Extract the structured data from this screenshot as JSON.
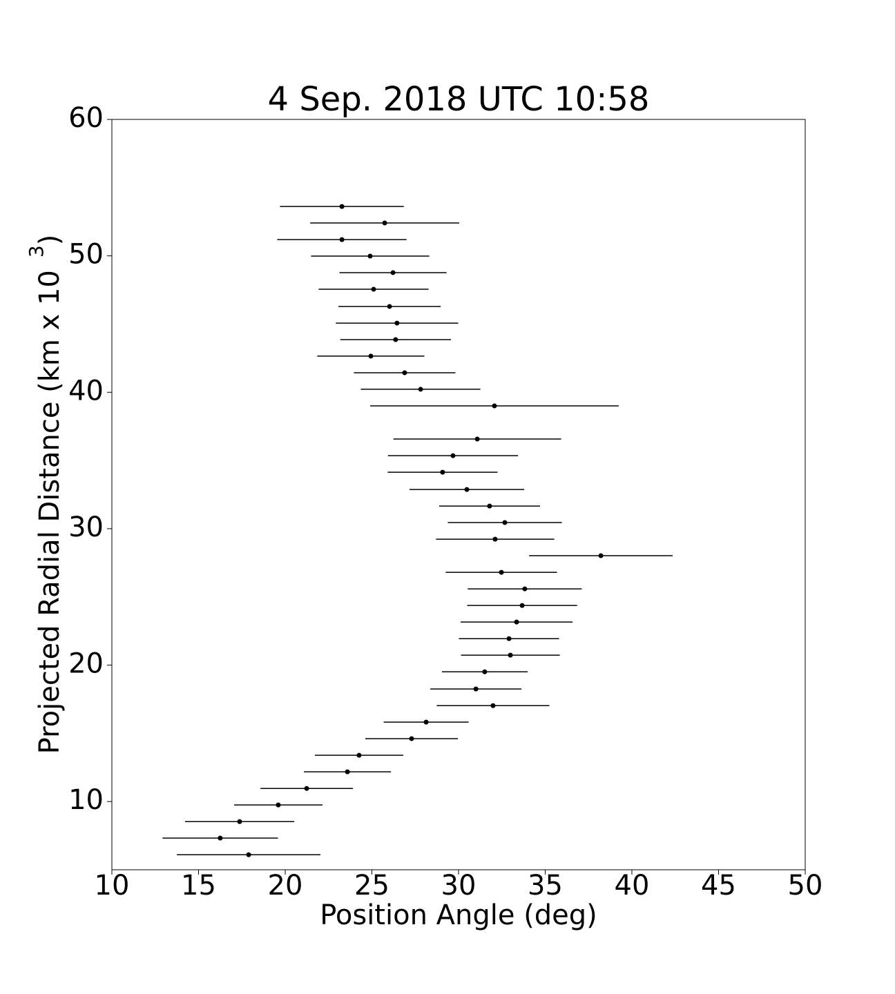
{
  "chart_data": {
    "type": "errorbar-scatter",
    "title": "4 Sep. 2018 UTC 10:58",
    "xlabel": "Position Angle (deg)",
    "ylabel": "Projected Radial Distance (km x 10",
    "ylabel_sup": "3",
    "ylabel_end": ")",
    "color": "#000000",
    "x": [
      23.27,
      25.74,
      23.27,
      24.9,
      26.22,
      25.1,
      26.02,
      26.45,
      26.37,
      24.94,
      26.89,
      27.81,
      32.07,
      31.08,
      29.68,
      29.08,
      30.48,
      31.79,
      32.67,
      32.11,
      38.21,
      32.47,
      33.82,
      33.67,
      33.35,
      32.91,
      32.99,
      31.51,
      31.0,
      31.99,
      28.13,
      27.29,
      24.26,
      23.59,
      21.24,
      19.6,
      17.37,
      16.25,
      17.89
    ],
    "y": [
      53.62,
      52.41,
      51.19,
      49.98,
      48.77,
      47.55,
      46.29,
      45.07,
      43.86,
      42.65,
      41.43,
      40.22,
      39.0,
      36.57,
      35.35,
      34.14,
      32.87,
      31.66,
      30.45,
      29.23,
      28.02,
      26.8,
      25.59,
      24.37,
      23.16,
      21.94,
      20.73,
      19.51,
      18.25,
      17.03,
      15.82,
      14.61,
      13.39,
      12.18,
      10.96,
      9.75,
      8.53,
      7.32,
      6.1
    ],
    "xerr": [
      3.57,
      4.3,
      3.73,
      3.41,
      3.09,
      3.17,
      2.95,
      3.53,
      3.19,
      3.09,
      2.93,
      3.45,
      7.17,
      4.84,
      3.75,
      3.17,
      3.31,
      2.91,
      3.29,
      3.41,
      4.14,
      3.21,
      3.29,
      3.17,
      3.23,
      2.89,
      2.85,
      2.47,
      2.63,
      3.25,
      2.45,
      2.67,
      2.55,
      2.51,
      2.67,
      2.55,
      3.15,
      3.33,
      4.14
    ],
    "xlim": [
      10,
      50
    ],
    "ylim": [
      5,
      60
    ],
    "xticks": [
      10,
      15,
      20,
      25,
      30,
      35,
      40,
      45,
      50
    ],
    "yticks": [
      10,
      20,
      30,
      40,
      50,
      60
    ]
  }
}
